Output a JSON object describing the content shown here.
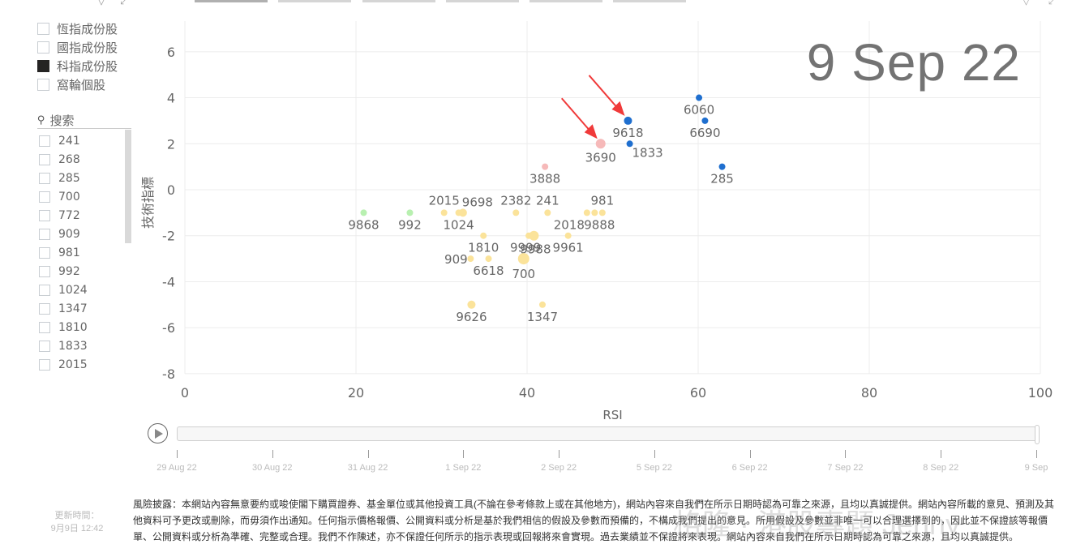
{
  "header": {
    "tabs": [
      {
        "label": "",
        "active": true
      },
      {
        "label": "",
        "active": false
      },
      {
        "label": "",
        "active": false
      },
      {
        "label": "",
        "active": false
      },
      {
        "label": "",
        "active": false
      },
      {
        "label": "",
        "active": false
      }
    ],
    "filter_icon": "filter-icon",
    "expand_icon": "focus-mode-icon"
  },
  "category_slicer": {
    "items": [
      {
        "label": "恆指成份股",
        "checked": false
      },
      {
        "label": "國指成份股",
        "checked": false
      },
      {
        "label": "科指成份股",
        "checked": true
      },
      {
        "label": "窩輪個股",
        "checked": false
      }
    ]
  },
  "stock_slicer": {
    "search_label": "搜索",
    "search_icon": "search-icon",
    "items": [
      "241",
      "268",
      "285",
      "700",
      "772",
      "909",
      "981",
      "992",
      "1024",
      "1347",
      "1810",
      "1833",
      "2015"
    ]
  },
  "current_date": "9 Sep 22",
  "play_axis": {
    "play_icon": "play-icon",
    "ticks": [
      "29 Aug 22",
      "30 Aug 22",
      "31 Aug 22",
      "1 Sep 22",
      "2 Sep 22",
      "5 Sep 22",
      "6 Sep 22",
      "7 Sep 22",
      "8 Sep 22",
      "9 Sep"
    ]
  },
  "footer": {
    "updated_label": "更新時間：",
    "updated_value": "9月9日 12:42",
    "disclaimer": "風險披露：本網站內容無意要約或唆使閣下購買證券、基金單位或其他投資工具(不論在參考條款上或在其他地方)，網站內容來自我們在所示日期時認為可靠之來源，且均以真誠提供。網站內容所載的意見、預測及其他資料可予更改或刪除，而毋須作出通知。任何指示價格報價、公開資料或分析是基於我們相信的假設及參數而預備的，不構成我們提出的意見。所用假設及參數並非唯一可以合理選擇到的，因此並不保證該等報價單、公開資料或分析為準確、完整或合理。我們不作陳述，亦不保證任何所示的指示表現或回報將來會實現。過去業績並不保證將來表現。網站內容來自我們在所示日期時認為可靠之來源，且均以真誠提供。",
    "watermark": "格隆 · 港股專題 Jenny"
  },
  "colors": {
    "blue": "#1f6fcf",
    "pink": "#f6b9b9",
    "yellow": "#fbe39a",
    "green": "#b8f0b0",
    "arrow": "#f03a3a",
    "grid": "#ececec",
    "axis_text": "#666666"
  },
  "chart_data": {
    "type": "scatter",
    "title": "",
    "xlabel": "RSI",
    "ylabel": "技術指標",
    "xlim": [
      0,
      100
    ],
    "ylim": [
      -8,
      7
    ],
    "xticks": [
      0,
      20,
      40,
      60,
      80,
      100
    ],
    "yticks": [
      6,
      4,
      2,
      0,
      -2,
      -4,
      -6,
      -8
    ],
    "grid": true,
    "annotation": "9 Sep 22",
    "points": [
      {
        "label": "6060",
        "x": 60.1,
        "y": 4,
        "color": "blue",
        "size": 4
      },
      {
        "label": "9618",
        "x": 51.8,
        "y": 3,
        "color": "blue",
        "size": 5,
        "arrow": true
      },
      {
        "label": "6690",
        "x": 60.8,
        "y": 3,
        "color": "blue",
        "size": 4
      },
      {
        "label": "3690",
        "x": 48.6,
        "y": 2,
        "color": "pink",
        "size": 6,
        "arrow": true
      },
      {
        "label": "1833",
        "x": 52.0,
        "y": 2,
        "color": "blue",
        "size": 4
      },
      {
        "label": "285",
        "x": 62.8,
        "y": 1,
        "color": "blue",
        "size": 4
      },
      {
        "label": "3888",
        "x": 42.1,
        "y": 1,
        "color": "pink",
        "size": 4
      },
      {
        "label": "9868",
        "x": 20.9,
        "y": -1,
        "color": "green",
        "size": 4
      },
      {
        "label": "992",
        "x": 26.3,
        "y": -1,
        "color": "green",
        "size": 4
      },
      {
        "label": "2015",
        "x": 30.3,
        "y": -1,
        "color": "yellow",
        "size": 4
      },
      {
        "label": "9698",
        "x": 32.5,
        "y": -1,
        "color": "yellow",
        "size": 5
      },
      {
        "label": "1024",
        "x": 32.0,
        "y": -1,
        "color": "yellow",
        "size": 4
      },
      {
        "label": "2382",
        "x": 38.7,
        "y": -1,
        "color": "yellow",
        "size": 4
      },
      {
        "label": "241",
        "x": 42.4,
        "y": -1,
        "color": "yellow",
        "size": 4
      },
      {
        "label": "2018",
        "x": 47.0,
        "y": -1,
        "color": "yellow",
        "size": 4
      },
      {
        "label": "9888",
        "x": 47.9,
        "y": -1,
        "color": "yellow",
        "size": 4
      },
      {
        "label": "981",
        "x": 48.8,
        "y": -1,
        "color": "yellow",
        "size": 4
      },
      {
        "label": "1810",
        "x": 34.9,
        "y": -2,
        "color": "yellow",
        "size": 4
      },
      {
        "label": "9999",
        "x": 40.2,
        "y": -2,
        "color": "yellow",
        "size": 4
      },
      {
        "label": "9988",
        "x": 40.8,
        "y": -2,
        "color": "yellow",
        "size": 6
      },
      {
        "label": "9961",
        "x": 44.8,
        "y": -2,
        "color": "yellow",
        "size": 4
      },
      {
        "label": "909",
        "x": 33.4,
        "y": -3,
        "color": "yellow",
        "size": 4
      },
      {
        "label": "6618",
        "x": 35.5,
        "y": -3,
        "color": "yellow",
        "size": 4
      },
      {
        "label": "700",
        "x": 39.6,
        "y": -3,
        "color": "yellow",
        "size": 7
      },
      {
        "label": "9626",
        "x": 33.5,
        "y": -5,
        "color": "yellow",
        "size": 5
      },
      {
        "label": "1347",
        "x": 41.8,
        "y": -5,
        "color": "yellow",
        "size": 4
      }
    ]
  }
}
